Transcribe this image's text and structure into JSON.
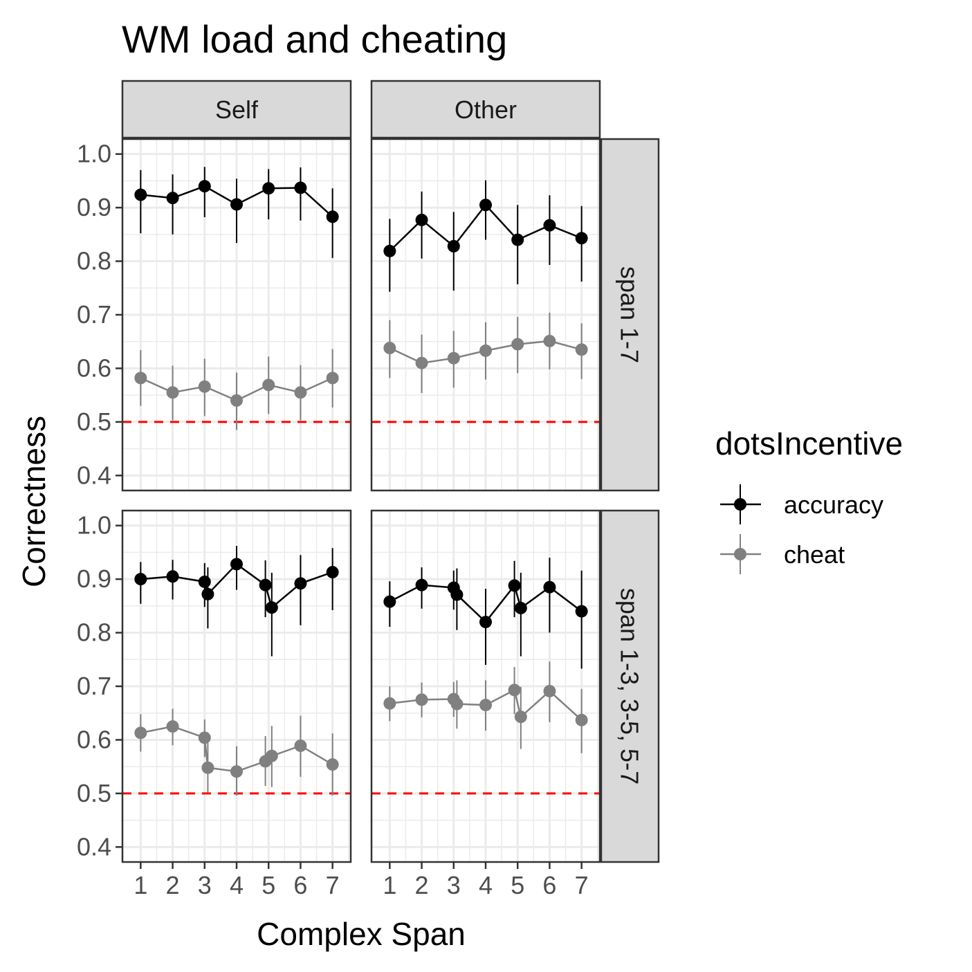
{
  "chart_data": {
    "type": "line",
    "title": "WM load and cheating",
    "xlabel": "Complex Span",
    "ylabel": "Correctness",
    "xlim": [
      0.43,
      7.57
    ],
    "ylim": [
      0.372,
      1.028
    ],
    "x_ticks": [
      "1",
      "2",
      "3",
      "4",
      "5",
      "6",
      "7"
    ],
    "y_ticks": [
      "0.4",
      "0.5",
      "0.6",
      "0.7",
      "0.8",
      "0.9",
      "1.0"
    ],
    "reference_line": {
      "y": 0.5,
      "color": "#ff0000",
      "style": "dashed"
    },
    "columns": [
      "Self",
      "Other"
    ],
    "rows": [
      "span 1-7",
      "span 1-3, 3-5, 5-7"
    ],
    "legend": {
      "title": "dotsIncentive",
      "position": "right",
      "entries": [
        {
          "label": "accuracy",
          "color": "#000000"
        },
        {
          "label": "cheat",
          "color": "#808080"
        }
      ]
    },
    "grid": true,
    "panels": [
      {
        "col": "Self",
        "row": "span 1-7",
        "series": [
          {
            "name": "accuracy",
            "points": [
              {
                "x": 1,
                "y": 0.924,
                "lo": 0.852,
                "hi": 0.97
              },
              {
                "x": 2,
                "y": 0.918,
                "lo": 0.85,
                "hi": 0.962
              },
              {
                "x": 3,
                "y": 0.94,
                "lo": 0.882,
                "hi": 0.976
              },
              {
                "x": 4,
                "y": 0.906,
                "lo": 0.834,
                "hi": 0.954
              },
              {
                "x": 5,
                "y": 0.936,
                "lo": 0.878,
                "hi": 0.972
              },
              {
                "x": 6,
                "y": 0.937,
                "lo": 0.876,
                "hi": 0.975
              },
              {
                "x": 7,
                "y": 0.883,
                "lo": 0.806,
                "hi": 0.936
              }
            ]
          },
          {
            "name": "cheat",
            "points": [
              {
                "x": 1,
                "y": 0.582,
                "lo": 0.53,
                "hi": 0.634
              },
              {
                "x": 2,
                "y": 0.555,
                "lo": 0.503,
                "hi": 0.605
              },
              {
                "x": 3,
                "y": 0.566,
                "lo": 0.511,
                "hi": 0.618
              },
              {
                "x": 4,
                "y": 0.54,
                "lo": 0.485,
                "hi": 0.592
              },
              {
                "x": 5,
                "y": 0.569,
                "lo": 0.515,
                "hi": 0.622
              },
              {
                "x": 6,
                "y": 0.555,
                "lo": 0.503,
                "hi": 0.606
              },
              {
                "x": 7,
                "y": 0.582,
                "lo": 0.527,
                "hi": 0.636
              }
            ]
          }
        ]
      },
      {
        "col": "Other",
        "row": "span 1-7",
        "series": [
          {
            "name": "accuracy",
            "points": [
              {
                "x": 1,
                "y": 0.819,
                "lo": 0.743,
                "hi": 0.879
              },
              {
                "x": 2,
                "y": 0.877,
                "lo": 0.805,
                "hi": 0.93
              },
              {
                "x": 3,
                "y": 0.828,
                "lo": 0.745,
                "hi": 0.892
              },
              {
                "x": 4,
                "y": 0.905,
                "lo": 0.84,
                "hi": 0.951
              },
              {
                "x": 5,
                "y": 0.84,
                "lo": 0.757,
                "hi": 0.905
              },
              {
                "x": 6,
                "y": 0.867,
                "lo": 0.793,
                "hi": 0.923
              },
              {
                "x": 7,
                "y": 0.843,
                "lo": 0.762,
                "hi": 0.903
              }
            ]
          },
          {
            "name": "cheat",
            "points": [
              {
                "x": 1,
                "y": 0.638,
                "lo": 0.582,
                "hi": 0.69
              },
              {
                "x": 2,
                "y": 0.61,
                "lo": 0.554,
                "hi": 0.663
              },
              {
                "x": 3,
                "y": 0.619,
                "lo": 0.564,
                "hi": 0.67
              },
              {
                "x": 4,
                "y": 0.633,
                "lo": 0.579,
                "hi": 0.686
              },
              {
                "x": 5,
                "y": 0.645,
                "lo": 0.591,
                "hi": 0.696
              },
              {
                "x": 6,
                "y": 0.651,
                "lo": 0.598,
                "hi": 0.704
              },
              {
                "x": 7,
                "y": 0.635,
                "lo": 0.58,
                "hi": 0.684
              }
            ]
          }
        ]
      },
      {
        "col": "Self",
        "row": "span 1-3, 3-5, 5-7",
        "series": [
          {
            "name": "accuracy",
            "points": [
              {
                "x": 1,
                "y": 0.9,
                "lo": 0.854,
                "hi": 0.932
              },
              {
                "x": 2,
                "y": 0.905,
                "lo": 0.862,
                "hi": 0.936
              },
              {
                "x": 3,
                "y": 0.895,
                "lo": 0.848,
                "hi": 0.93
              },
              {
                "x": 3.1,
                "y": 0.872,
                "lo": 0.808,
                "hi": 0.922
              },
              {
                "x": 4,
                "y": 0.928,
                "lo": 0.88,
                "hi": 0.962
              },
              {
                "x": 4.9,
                "y": 0.889,
                "lo": 0.829,
                "hi": 0.935
              },
              {
                "x": 5.1,
                "y": 0.847,
                "lo": 0.756,
                "hi": 0.912
              },
              {
                "x": 6,
                "y": 0.892,
                "lo": 0.814,
                "hi": 0.945
              },
              {
                "x": 7,
                "y": 0.913,
                "lo": 0.842,
                "hi": 0.958
              }
            ]
          },
          {
            "name": "cheat",
            "points": [
              {
                "x": 1,
                "y": 0.613,
                "lo": 0.578,
                "hi": 0.648
              },
              {
                "x": 2,
                "y": 0.625,
                "lo": 0.59,
                "hi": 0.658
              },
              {
                "x": 3,
                "y": 0.604,
                "lo": 0.568,
                "hi": 0.638
              },
              {
                "x": 3.1,
                "y": 0.548,
                "lo": 0.502,
                "hi": 0.594
              },
              {
                "x": 4,
                "y": 0.541,
                "lo": 0.496,
                "hi": 0.588
              },
              {
                "x": 4.9,
                "y": 0.56,
                "lo": 0.514,
                "hi": 0.607
              },
              {
                "x": 5.1,
                "y": 0.57,
                "lo": 0.512,
                "hi": 0.626
              },
              {
                "x": 6,
                "y": 0.589,
                "lo": 0.531,
                "hi": 0.645
              },
              {
                "x": 7,
                "y": 0.554,
                "lo": 0.496,
                "hi": 0.612
              }
            ]
          }
        ]
      },
      {
        "col": "Other",
        "row": "span 1-3, 3-5, 5-7",
        "series": [
          {
            "name": "accuracy",
            "points": [
              {
                "x": 1,
                "y": 0.858,
                "lo": 0.811,
                "hi": 0.896
              },
              {
                "x": 2,
                "y": 0.889,
                "lo": 0.845,
                "hi": 0.922
              },
              {
                "x": 3,
                "y": 0.884,
                "lo": 0.843,
                "hi": 0.916
              },
              {
                "x": 3.1,
                "y": 0.871,
                "lo": 0.805,
                "hi": 0.92
              },
              {
                "x": 4,
                "y": 0.82,
                "lo": 0.74,
                "hi": 0.882
              },
              {
                "x": 4.9,
                "y": 0.888,
                "lo": 0.829,
                "hi": 0.934
              },
              {
                "x": 5.1,
                "y": 0.846,
                "lo": 0.756,
                "hi": 0.912
              },
              {
                "x": 6,
                "y": 0.885,
                "lo": 0.8,
                "hi": 0.94
              },
              {
                "x": 7,
                "y": 0.84,
                "lo": 0.733,
                "hi": 0.916
              }
            ]
          },
          {
            "name": "cheat",
            "points": [
              {
                "x": 1,
                "y": 0.668,
                "lo": 0.635,
                "hi": 0.7
              },
              {
                "x": 2,
                "y": 0.675,
                "lo": 0.642,
                "hi": 0.707
              },
              {
                "x": 3,
                "y": 0.676,
                "lo": 0.643,
                "hi": 0.708
              },
              {
                "x": 3.1,
                "y": 0.667,
                "lo": 0.621,
                "hi": 0.711
              },
              {
                "x": 4,
                "y": 0.665,
                "lo": 0.617,
                "hi": 0.711
              },
              {
                "x": 4.9,
                "y": 0.693,
                "lo": 0.648,
                "hi": 0.736
              },
              {
                "x": 5.1,
                "y": 0.643,
                "lo": 0.583,
                "hi": 0.699
              },
              {
                "x": 6,
                "y": 0.691,
                "lo": 0.633,
                "hi": 0.746
              },
              {
                "x": 7,
                "y": 0.637,
                "lo": 0.575,
                "hi": 0.695
              }
            ]
          }
        ]
      }
    ]
  }
}
